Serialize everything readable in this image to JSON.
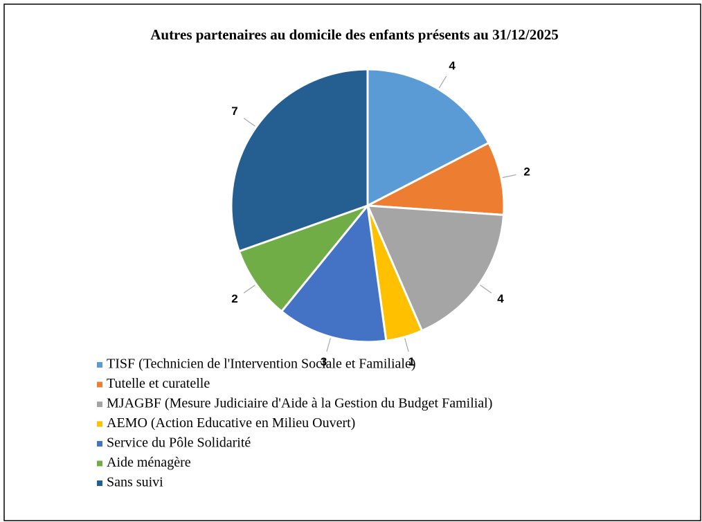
{
  "chart_data": {
    "type": "pie",
    "title": "Autres partenaires au domicile des enfants présents au 31/12/2025",
    "categories": [
      "TISF (Technicien de l'Intervention Sociale et Familiale)",
      "Tutelle et curatelle",
      "MJAGBF (Mesure Judiciaire d'Aide à la Gestion du Budget Familial)",
      "AEMO (Action Educative en Milieu Ouvert)",
      "Service du Pôle Solidarité",
      "Aide ménagère",
      "Sans suivi"
    ],
    "values": [
      4,
      2,
      4,
      1,
      3,
      2,
      7
    ],
    "colors": [
      "#5b9bd5",
      "#ed7d31",
      "#a5a5a5",
      "#ffc000",
      "#4472c4",
      "#70ad47",
      "#255e91"
    ]
  }
}
